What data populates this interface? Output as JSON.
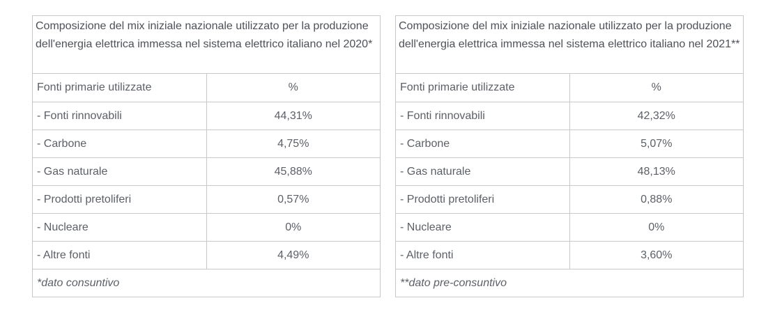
{
  "tables": [
    {
      "caption": "Composizione del mix iniziale nazionale utilizzato per la produzione dell'energia elettrica immessa nel sistema elettrico italiano nel 2020*",
      "header": {
        "source": "Fonti primarie utilizzate",
        "percent": "%"
      },
      "rows": [
        {
          "source": "- Fonti rinnovabili",
          "value": "44,31%"
        },
        {
          "source": "- Carbone",
          "value": "4,75%"
        },
        {
          "source": "- Gas naturale",
          "value": "45,88%"
        },
        {
          "source": "- Prodotti pretoliferi",
          "value": "0,57%"
        },
        {
          "source": "- Nucleare",
          "value": "0%"
        },
        {
          "source": "- Altre fonti",
          "value": "4,49%"
        }
      ],
      "note": "*dato consuntivo"
    },
    {
      "caption": "Composizione del mix iniziale nazionale utilizzato per la produzione dell'energia elettrica immessa nel sistema elettrico italiano nel 2021**",
      "header": {
        "source": "Fonti primarie utilizzate",
        "percent": "%"
      },
      "rows": [
        {
          "source": "- Fonti rinnovabili",
          "value": "42,32%"
        },
        {
          "source": "- Carbone",
          "value": "5,07%"
        },
        {
          "source": "- Gas naturale",
          "value": "48,13%"
        },
        {
          "source": "- Prodotti pretoliferi",
          "value": "0,88%"
        },
        {
          "source": "- Nucleare",
          "value": "0%"
        },
        {
          "source": "- Altre fonti",
          "value": "3,60%"
        }
      ],
      "note": "**dato pre-consuntivo"
    }
  ]
}
